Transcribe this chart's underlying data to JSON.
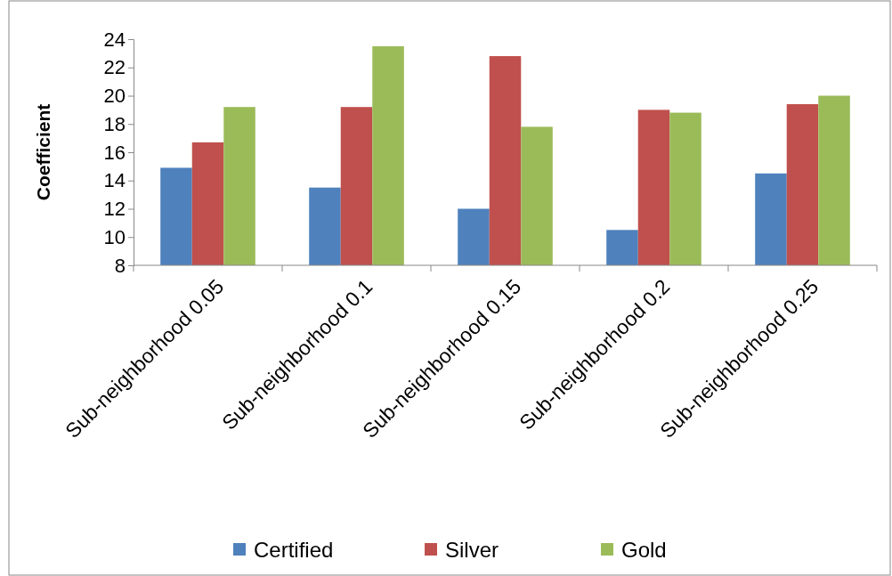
{
  "chart_data": {
    "type": "bar",
    "ylabel": "Coefficient",
    "categories": [
      "Sub-neighborhood 0.05",
      "Sub-neighborhood 0.1",
      "Sub-neighborhood 0.15",
      "Sub-neighborhood 0.2",
      "Sub-neighborhood 0.25"
    ],
    "series": [
      {
        "name": "Certified",
        "color": "#4f81bd",
        "values": [
          14.9,
          13.5,
          12.0,
          10.5,
          14.5
        ]
      },
      {
        "name": "Silver",
        "color": "#c0504d",
        "values": [
          16.7,
          19.2,
          22.8,
          19.0,
          19.4
        ]
      },
      {
        "name": "Gold",
        "color": "#9bbb59",
        "values": [
          19.2,
          23.5,
          17.8,
          18.8,
          20.0
        ]
      }
    ],
    "ylim": [
      8,
      24
    ],
    "yticks": [
      8,
      10,
      12,
      14,
      16,
      18,
      20,
      22,
      24
    ],
    "grid": false,
    "legend": "bottom"
  }
}
